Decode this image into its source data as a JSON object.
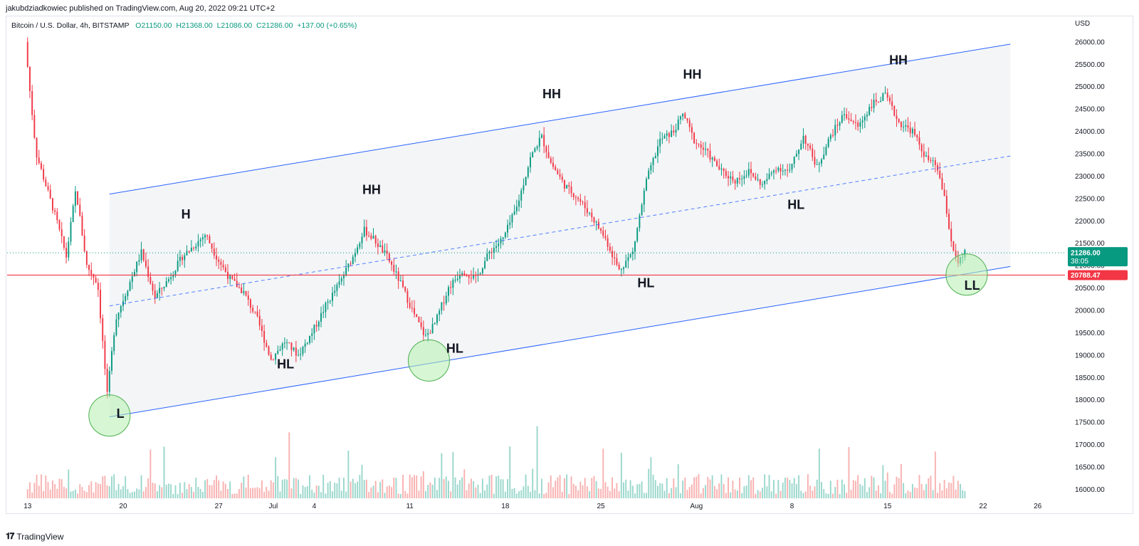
{
  "header": {
    "publisher": "jakubdziadkowiec published on TradingView.com, Aug 20, 2022 09:21 UTC+2",
    "symbol": "Bitcoin / U.S. Dollar, 4h, BITSTAMP",
    "open": "O21150.00",
    "high": "H21368.00",
    "low": "L21086.00",
    "close": "C21286.00",
    "change": "+137.00 (+0.65%)"
  },
  "footer": {
    "brand": "TradingView"
  },
  "colors": {
    "up": "#089981",
    "down": "#f23645",
    "channel": "#2962ff",
    "support": "#f23645",
    "circle_fill": "#b7f0b1",
    "circle_stroke": "#4caf50"
  },
  "chart_data": {
    "type": "candlestick",
    "instrument": "Bitcoin / U.S. Dollar",
    "timeframe": "4h",
    "exchange": "BITSTAMP",
    "y_unit": "USD",
    "ylim": [
      15800,
      26300
    ],
    "y_ticks": [
      16000,
      16500,
      17000,
      17500,
      18000,
      18500,
      19000,
      19500,
      20000,
      20500,
      21000,
      21500,
      22000,
      22500,
      23000,
      23500,
      24000,
      24500,
      25000,
      25500,
      26000
    ],
    "x_ticks": [
      {
        "label": "13",
        "day": 13
      },
      {
        "label": "20",
        "day": 20
      },
      {
        "label": "27",
        "day": 27
      },
      {
        "label": "Jul",
        "day": 31
      },
      {
        "label": "4",
        "day": 34
      },
      {
        "label": "11",
        "day": 41
      },
      {
        "label": "18",
        "day": 48
      },
      {
        "label": "25",
        "day": 55
      },
      {
        "label": "Aug",
        "day": 62
      },
      {
        "label": "8",
        "day": 69
      },
      {
        "label": "15",
        "day": 76
      },
      {
        "label": "22",
        "day": 83
      },
      {
        "label": "26",
        "day": 87
      }
    ],
    "price_path": [
      {
        "day": 13,
        "price": 26000
      },
      {
        "day": 13.3,
        "price": 25000
      },
      {
        "day": 13.8,
        "price": 23500
      },
      {
        "day": 14.5,
        "price": 22800
      },
      {
        "day": 15.3,
        "price": 22000
      },
      {
        "day": 16,
        "price": 21200
      },
      {
        "day": 16.7,
        "price": 22700
      },
      {
        "day": 17.5,
        "price": 21000
      },
      {
        "day": 18.3,
        "price": 20600
      },
      {
        "day": 19,
        "price": 18100
      },
      {
        "day": 19.6,
        "price": 19800
      },
      {
        "day": 20.5,
        "price": 20500
      },
      {
        "day": 21.5,
        "price": 21300
      },
      {
        "day": 22.5,
        "price": 20300
      },
      {
        "day": 23.5,
        "price": 20700
      },
      {
        "day": 24.5,
        "price": 21200
      },
      {
        "day": 26.2,
        "price": 21700
      },
      {
        "day": 27,
        "price": 21200
      },
      {
        "day": 28,
        "price": 20700
      },
      {
        "day": 29,
        "price": 20400
      },
      {
        "day": 30,
        "price": 19800
      },
      {
        "day": 31,
        "price": 18900
      },
      {
        "day": 32,
        "price": 19300
      },
      {
        "day": 33,
        "price": 19000
      },
      {
        "day": 34,
        "price": 19500
      },
      {
        "day": 35,
        "price": 20100
      },
      {
        "day": 36,
        "price": 20600
      },
      {
        "day": 37,
        "price": 21200
      },
      {
        "day": 37.8,
        "price": 21800
      },
      {
        "day": 38.5,
        "price": 21600
      },
      {
        "day": 39.5,
        "price": 21200
      },
      {
        "day": 40.5,
        "price": 20600
      },
      {
        "day": 41.5,
        "price": 19900
      },
      {
        "day": 42.3,
        "price": 19400
      },
      {
        "day": 43,
        "price": 19700
      },
      {
        "day": 44,
        "price": 20500
      },
      {
        "day": 45,
        "price": 20900
      },
      {
        "day": 46,
        "price": 20700
      },
      {
        "day": 47,
        "price": 21300
      },
      {
        "day": 48,
        "price": 21600
      },
      {
        "day": 49,
        "price": 22300
      },
      {
        "day": 50,
        "price": 23400
      },
      {
        "day": 50.8,
        "price": 23900
      },
      {
        "day": 51.5,
        "price": 23300
      },
      {
        "day": 52.5,
        "price": 22800
      },
      {
        "day": 53.5,
        "price": 22500
      },
      {
        "day": 54.5,
        "price": 22100
      },
      {
        "day": 55.5,
        "price": 21600
      },
      {
        "day": 56.5,
        "price": 20900
      },
      {
        "day": 57.5,
        "price": 21300
      },
      {
        "day": 58.5,
        "price": 22900
      },
      {
        "day": 59.5,
        "price": 23800
      },
      {
        "day": 60.5,
        "price": 24000
      },
      {
        "day": 61.2,
        "price": 24400
      },
      {
        "day": 62,
        "price": 23800
      },
      {
        "day": 63,
        "price": 23500
      },
      {
        "day": 64,
        "price": 23100
      },
      {
        "day": 65,
        "price": 22900
      },
      {
        "day": 66,
        "price": 23100
      },
      {
        "day": 67,
        "price": 22800
      },
      {
        "day": 68,
        "price": 23200
      },
      {
        "day": 69,
        "price": 23100
      },
      {
        "day": 70,
        "price": 23900
      },
      {
        "day": 71,
        "price": 23200
      },
      {
        "day": 72,
        "price": 23900
      },
      {
        "day": 73,
        "price": 24400
      },
      {
        "day": 74,
        "price": 24100
      },
      {
        "day": 75,
        "price": 24600
      },
      {
        "day": 76,
        "price": 24800
      },
      {
        "day": 77,
        "price": 24200
      },
      {
        "day": 78,
        "price": 24000
      },
      {
        "day": 79,
        "price": 23400
      },
      {
        "day": 79.8,
        "price": 23200
      },
      {
        "day": 80.4,
        "price": 22400
      },
      {
        "day": 80.8,
        "price": 21600
      },
      {
        "day": 81.3,
        "price": 21000
      },
      {
        "day": 81.8,
        "price": 21286
      }
    ],
    "channel": {
      "start_day": 19,
      "end_day": 85,
      "lower_start": 17620,
      "lower_end": 20980,
      "upper_start": 22600,
      "upper_end": 25950,
      "mid_start": 20100,
      "mid_end": 23450
    },
    "support_level": 20788.47,
    "last_price": 21286.0,
    "last_price_label": "21286.00",
    "countdown": "38:05",
    "support_label": "20788.47",
    "annotations": [
      {
        "text": "L",
        "day": 19.8,
        "price": 17600
      },
      {
        "text": "H",
        "day": 24.6,
        "price": 22050
      },
      {
        "text": "HH",
        "day": 38.2,
        "price": 22600
      },
      {
        "text": "HL",
        "day": 31.9,
        "price": 18700
      },
      {
        "text": "HL",
        "day": 44.3,
        "price": 19050
      },
      {
        "text": "HH",
        "day": 51.4,
        "price": 24740
      },
      {
        "text": "HL",
        "day": 58.3,
        "price": 20520
      },
      {
        "text": "HH",
        "day": 61.7,
        "price": 25180
      },
      {
        "text": "HL",
        "day": 69.3,
        "price": 22270
      },
      {
        "text": "HH",
        "day": 76.8,
        "price": 25500
      },
      {
        "text": "LL",
        "day": 82.2,
        "price": 20460
      }
    ],
    "circles": [
      {
        "day": 19,
        "price": 17650
      },
      {
        "day": 42.4,
        "price": 18880
      },
      {
        "day": 81.8,
        "price": 20800
      }
    ]
  }
}
